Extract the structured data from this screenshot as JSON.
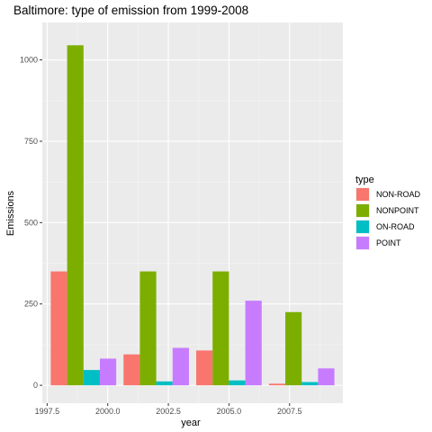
{
  "chart_data": {
    "type": "bar",
    "title": "Baltimore: type of emission from 1999-2008",
    "xlabel": "year",
    "ylabel": "Emissions",
    "xlim": [
      1997.3,
      2009.7
    ],
    "ylim": [
      -55,
      1115
    ],
    "x_ticks": [
      "1997.5",
      "2000.0",
      "2002.5",
      "2005.0",
      "2007.5"
    ],
    "y_ticks": [
      "0",
      "250",
      "500",
      "750",
      "1000"
    ],
    "x": [
      1999,
      2002,
      2005,
      2008
    ],
    "bar_group_width": 2.7,
    "legend_title": "type",
    "legend_position": "right",
    "grid": true,
    "series": [
      {
        "name": "NON-ROAD",
        "color": "#F8766D",
        "values": [
          350,
          95,
          107,
          5
        ]
      },
      {
        "name": "NONPOINT",
        "color": "#7CAE00",
        "values": [
          1045,
          350,
          350,
          225
        ]
      },
      {
        "name": "ON-ROAD",
        "color": "#00BFC4",
        "values": [
          47,
          12,
          15,
          10
        ]
      },
      {
        "name": "POINT",
        "color": "#C77CFF",
        "values": [
          82,
          115,
          260,
          52
        ]
      }
    ]
  }
}
